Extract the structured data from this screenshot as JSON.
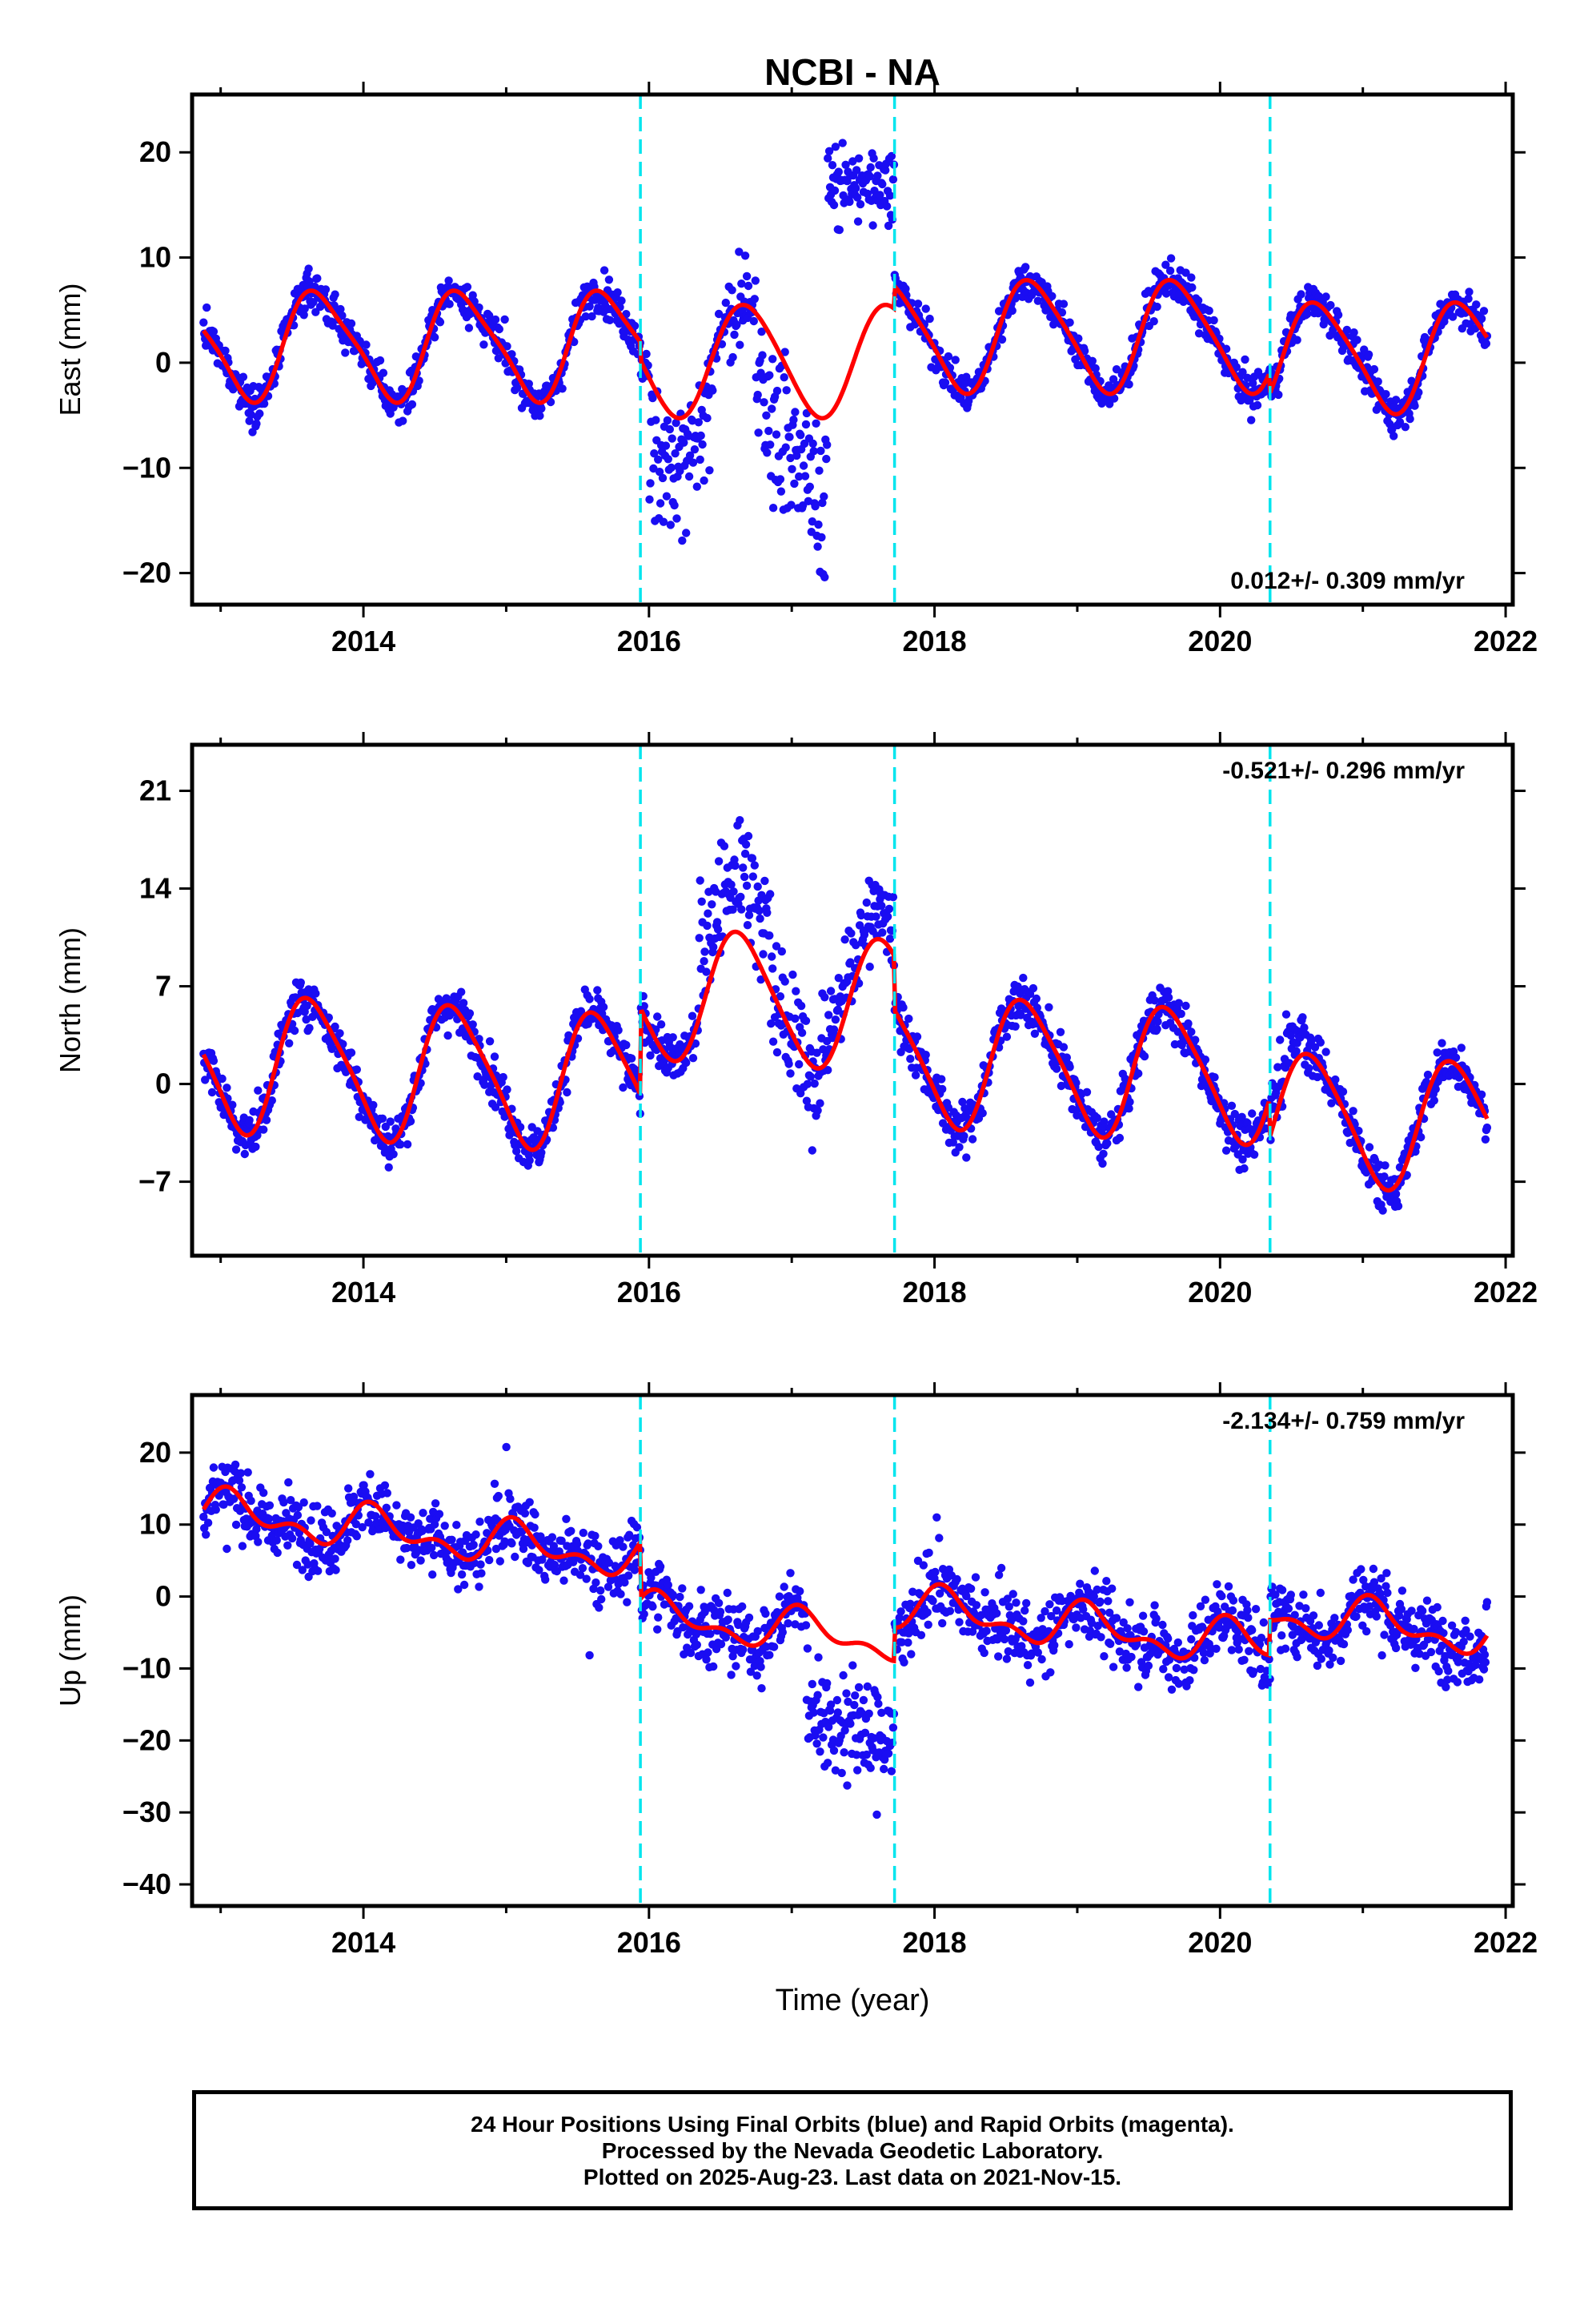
{
  "chart_data": [
    {
      "type": "scatter",
      "panel": "east",
      "title": "NCBI - NA",
      "ylabel": "East (mm)",
      "xlabel": "",
      "xlim": [
        2012.8,
        2022.05
      ],
      "ylim": [
        -23,
        25.5
      ],
      "xticks": [
        2014,
        2016,
        2018,
        2020,
        2022
      ],
      "yticks": [
        -20,
        -10,
        0,
        10,
        20
      ],
      "rate_text": "0.012+/- 0.309 mm/yr",
      "rate_position": "bottom-right",
      "breaks": [
        2015.94,
        2017.72,
        2020.35
      ],
      "series": [
        {
          "color": "#1a0df2",
          "kind": "points"
        },
        {
          "color": "#ff0000",
          "kind": "fit"
        }
      ]
    },
    {
      "type": "scatter",
      "panel": "north",
      "title": "",
      "ylabel": "North (mm)",
      "xlabel": "",
      "xlim": [
        2012.8,
        2022.05
      ],
      "ylim": [
        -12.3,
        24.3
      ],
      "xticks": [
        2014,
        2016,
        2018,
        2020,
        2022
      ],
      "yticks": [
        -7,
        0,
        7,
        14,
        21
      ],
      "rate_text": "-0.521+/- 0.296 mm/yr",
      "rate_position": "top-right",
      "breaks": [
        2015.94,
        2017.72,
        2020.35
      ],
      "series": [
        {
          "color": "#1a0df2",
          "kind": "points"
        },
        {
          "color": "#ff0000",
          "kind": "fit"
        }
      ]
    },
    {
      "type": "scatter",
      "panel": "up",
      "title": "",
      "ylabel": "Up (mm)",
      "xlabel": "Time (year)",
      "xlim": [
        2012.8,
        2022.05
      ],
      "ylim": [
        -43,
        28
      ],
      "xticks": [
        2014,
        2016,
        2018,
        2020,
        2022
      ],
      "yticks": [
        -40,
        -30,
        -20,
        -10,
        0,
        10,
        20
      ],
      "rate_text": "-2.134+/- 0.759 mm/yr",
      "rate_position": "top-right",
      "breaks": [
        2015.94,
        2017.72,
        2020.35
      ],
      "series": [
        {
          "color": "#1a0df2",
          "kind": "points"
        },
        {
          "color": "#ff0000",
          "kind": "fit"
        }
      ]
    }
  ],
  "caption": {
    "line1": "24 Hour Positions Using Final Orbits (blue) and Rapid Orbits (magenta).",
    "line2": "Processed by the Nevada Geodetic Laboratory.",
    "line3": "Plotted on 2025-Aug-23. Last data on 2021-Nov-15."
  },
  "colors": {
    "points": "#1a0df2",
    "fit": "#ff0000",
    "breaks": "#00e5ee",
    "frame": "#000000"
  }
}
